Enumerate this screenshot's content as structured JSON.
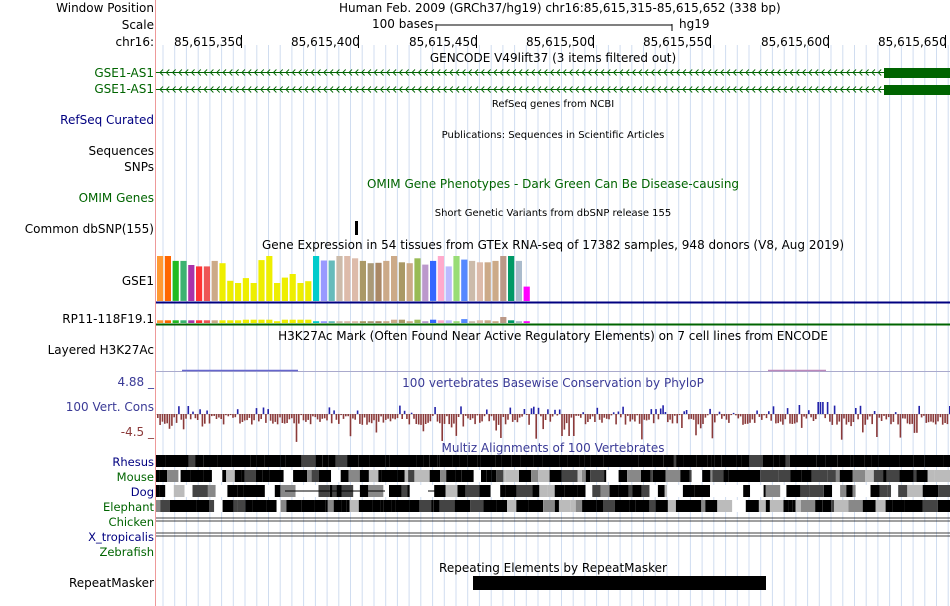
{
  "header": {
    "window_position_label": "Window Position",
    "window_position_value": "Human Feb. 2009 (GRCh37/hg19)   chr16:85,615,315-85,615,652 (338 bp)",
    "scale_label": "Scale",
    "scale_text": "100 bases",
    "scale_assembly": "hg19",
    "chrom_label": "chr16:",
    "ticks": [
      "85,615,350",
      "85,615,400",
      "85,615,450",
      "85,615,500",
      "85,615,550",
      "85,615,600",
      "85,615,650"
    ]
  },
  "gencode": {
    "title": "GENCODE V49lift37 (3 items filtered out)",
    "items": [
      "GSE1-AS1",
      "GSE1-AS1"
    ]
  },
  "refseq": {
    "title": "RefSeq genes from NCBI",
    "label": "RefSeq Curated"
  },
  "publications": {
    "title": "Publications: Sequences in Scientific Articles",
    "labels": [
      "Sequences",
      "SNPs"
    ]
  },
  "omim": {
    "label": "OMIM Genes",
    "title": "OMIM Gene Phenotypes - Dark Green Can Be Disease-causing"
  },
  "dbsnp": {
    "title": "Short Genetic Variants from dbSNP release 155",
    "label": "Common dbSNP(155)"
  },
  "gtex": {
    "title": "Gene Expression in 54 tissues from GTEx RNA-seq of 17382 samples, 948 donors (V8, Aug 2019)",
    "genes": [
      "GSE1",
      "RP11-118F19.1"
    ],
    "bar_colors": [
      "#FF9933",
      "#FF6600",
      "#22BB22",
      "#3CB371",
      "#AA33AA",
      "#FF3333",
      "#EE5555",
      "#CCAA88",
      "#EEEE00",
      "#EEEE00",
      "#EEEE00",
      "#EEEE00",
      "#EEEE00",
      "#EEEE00",
      "#EEEE00",
      "#EEEE00",
      "#EEEE00",
      "#EEEE00",
      "#EEEE00",
      "#EEEE00",
      "#00CCCC",
      "#9999FF",
      "#66BBBB",
      "#CCBBAA",
      "#DDBBAA",
      "#DDBBAA",
      "#AA9966",
      "#AA9977",
      "#AA8866",
      "#CCAA88",
      "#CCAA88",
      "#AA9966",
      "#CCAA88",
      "#99BB55",
      "#BB99CC",
      "#3366FF",
      "#FFAACC",
      "#BBBBFF",
      "#99DD77",
      "#5588FF",
      "#CCBBAA",
      "#DDBBAA",
      "#CCAA88",
      "#CCAA88",
      "#BB9988",
      "#009966",
      "#AABBCC",
      "#FF00FF"
    ],
    "gse1_values": [
      1.0,
      1.0,
      0.89,
      0.89,
      0.8,
      0.77,
      0.77,
      0.89,
      0.84,
      0.45,
      0.4,
      0.51,
      0.4,
      0.91,
      1.0,
      0.4,
      0.52,
      0.6,
      0.4,
      0.44,
      1.0,
      0.9,
      0.9,
      1.0,
      1.0,
      0.95,
      0.89,
      0.84,
      0.85,
      0.89,
      1.0,
      0.86,
      0.84,
      0.95,
      0.81,
      0.89,
      1.0,
      0.77,
      1.0,
      0.92,
      0.89,
      0.86,
      0.86,
      0.89,
      1.0,
      1.0,
      0.89,
      0.32
    ],
    "rp11_values": [
      0.45,
      0.45,
      0.45,
      0.45,
      0.45,
      0.45,
      0.45,
      0.45,
      0.45,
      0.45,
      0.45,
      0.55,
      0.55,
      0.55,
      0.55,
      0.3,
      0.55,
      0.55,
      0.55,
      0.55,
      0.3,
      0.3,
      0.3,
      0.3,
      0.3,
      0.3,
      0.3,
      0.3,
      0.3,
      0.3,
      0.55,
      0.55,
      0.3,
      0.55,
      0.3,
      0.55,
      0.45,
      0.45,
      0.3,
      0.65,
      0.3,
      0.45,
      0.45,
      0.3,
      1.0,
      0.45,
      0.3,
      0.3
    ]
  },
  "h3k27ac": {
    "title": "H3K27Ac Mark (Often Found Near Active Regulatory Elements) on 7 cell lines from ENCODE",
    "label": "Layered H3K27Ac"
  },
  "conservation": {
    "title": "100 vertebrates Basewise Conservation by PhyloP",
    "label": "100 Vert. Cons",
    "max_label": "4.88 _",
    "min_label": "-4.5 _"
  },
  "multiz": {
    "title": "Multiz Alignments of 100 Vertebrates",
    "species": [
      "Rhesus",
      "Mouse",
      "Dog",
      "Elephant",
      "Chicken",
      "X_tropicalis",
      "Zebrafish"
    ]
  },
  "repeatmasker": {
    "title": "Repeating Elements by RepeatMasker",
    "label": "RepeatMasker"
  },
  "colors": {
    "gene_green": "#006400",
    "refseq_navy": "#000080",
    "cons_pos": "#2222aa",
    "cons_neg": "#8B3A3A",
    "guide_line": "#c8d8f0",
    "divider": "#ee9999"
  }
}
